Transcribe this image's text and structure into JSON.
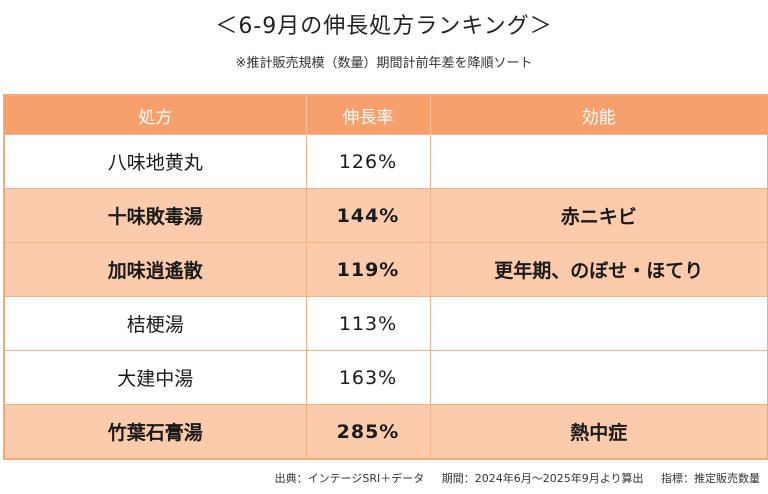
{
  "title": "＜6-9月の伸長処方ランキング＞",
  "subtitle": "※推計販売規模（数量）期間計前年差を降順ソート",
  "table": {
    "headers": [
      "処方",
      "伸長率",
      "効能"
    ],
    "rows": [
      {
        "formula": "八味地黄丸",
        "growth": "126%",
        "effect": "",
        "highlight": false
      },
      {
        "formula": "十味敗毒湯",
        "growth": "144%",
        "effect": "赤ニキビ",
        "highlight": true
      },
      {
        "formula": "加味逍遙散",
        "growth": "119%",
        "effect": "更年期、のぼせ・ほてり",
        "highlight": true
      },
      {
        "formula": "桔梗湯",
        "growth": "113%",
        "effect": "",
        "highlight": false
      },
      {
        "formula": "大建中湯",
        "growth": "163%",
        "effect": "",
        "highlight": false
      },
      {
        "formula": "竹葉石膏湯",
        "growth": "285%",
        "effect": "熱中症",
        "highlight": true
      }
    ]
  },
  "footer": {
    "source": "出典：インテージSRI＋データ",
    "period": "期間：2024年6月～2025年9月より算出",
    "metric": "指標：推定販売数量"
  },
  "colors": {
    "header_bg": "#f8a06c",
    "highlight_bg": "#fccbac",
    "border": "#f3b28a"
  }
}
